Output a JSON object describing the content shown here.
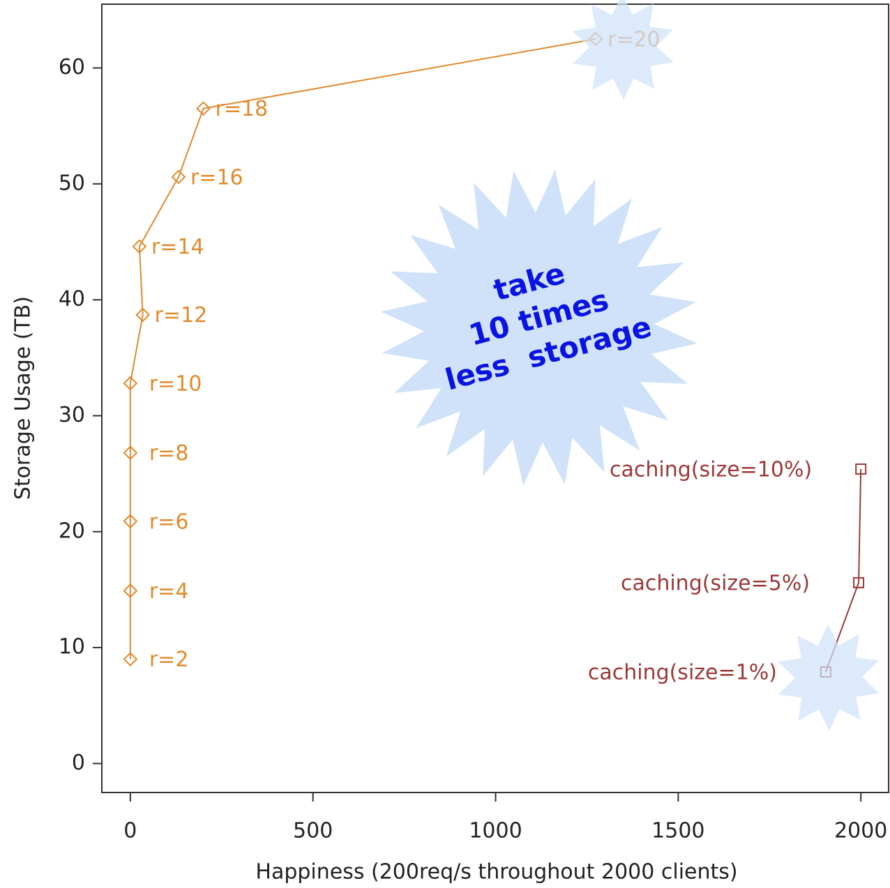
{
  "chart_data": {
    "type": "line",
    "xlabel": "Happiness (200req/s throughout 2000 clients)",
    "ylabel": "Storage Usage (TB)",
    "xlim": [
      -78,
      2076
    ],
    "ylim": [
      -2.5,
      65.5
    ],
    "xticks": [
      0,
      500,
      1000,
      1500,
      2000
    ],
    "yticks": [
      0,
      10,
      20,
      30,
      40,
      50,
      60
    ],
    "annotation": [
      "take",
      "10 times",
      "less  storage"
    ],
    "series": [
      {
        "color": "#e08a2c",
        "marker": "diamond",
        "x": [
          0,
          0,
          0,
          0,
          0,
          34,
          25,
          132,
          200,
          1274
        ],
        "values": [
          9,
          14.9,
          20.9,
          26.8,
          32.8,
          38.7,
          44.6,
          50.6,
          56.5,
          62.5
        ],
        "labels": [
          "r=2",
          "r=4",
          "r=6",
          "r=8",
          "r=10",
          "r=12",
          "r=14",
          "r=16",
          "r=18",
          "r=20"
        ]
      },
      {
        "color": "#9b3838",
        "marker": "square",
        "x": [
          1904,
          1994,
          2000
        ],
        "values": [
          7.9,
          15.6,
          25.4
        ],
        "labels": [
          "caching(size=1%)",
          "caching(size=5%)",
          "caching(size=10%)"
        ]
      }
    ]
  }
}
